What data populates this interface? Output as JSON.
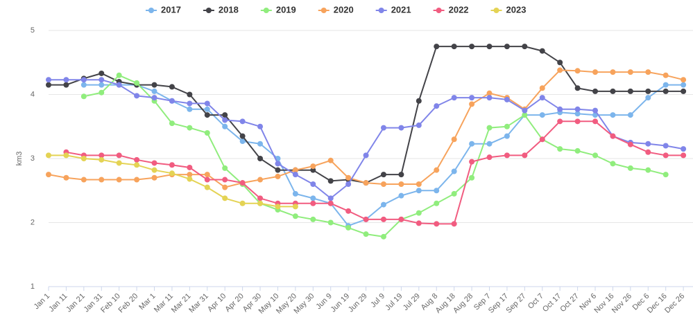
{
  "chart_data": {
    "type": "line",
    "y_label": "km3",
    "categories": [
      "Jan 1",
      "Jan 11",
      "Jan 21",
      "Jan 31",
      "Feb 10",
      "Feb 20",
      "Mar 1",
      "Mar 11",
      "Mar 21",
      "Mar 31",
      "Apr 10",
      "Apr 20",
      "Apr 30",
      "May 10",
      "May 20",
      "May 30",
      "Jun 9",
      "Jun 19",
      "Jun 29",
      "Jul 9",
      "Jul 19",
      "Jul 29",
      "Aug 8",
      "Aug 18",
      "Aug 28",
      "Sep 7",
      "Sep 17",
      "Sep 27",
      "Oct 7",
      "Oct 17",
      "Oct 27",
      "Nov 6",
      "Nov 16",
      "Nov 26",
      "Dec 6",
      "Dec 16",
      "Dec 26"
    ],
    "ylim": [
      1,
      5
    ],
    "yticks": [
      1,
      2,
      3,
      4,
      5
    ],
    "grid": true,
    "legend": "top",
    "series": [
      {
        "name": "2017",
        "color": "#7cb5ec",
        "values": [
          null,
          null,
          4.15,
          4.15,
          4.15,
          4.15,
          4.05,
          3.9,
          3.77,
          3.77,
          3.5,
          3.27,
          3.23,
          3.0,
          2.45,
          2.38,
          2.3,
          1.95,
          2.05,
          2.28,
          2.42,
          2.5,
          2.5,
          2.8,
          3.23,
          3.23,
          3.35,
          3.68,
          3.68,
          3.72,
          3.7,
          3.68,
          3.68,
          3.68,
          3.95,
          4.15,
          4.15
        ]
      },
      {
        "name": "2018",
        "color": "#434348",
        "values": [
          4.15,
          4.15,
          4.25,
          4.33,
          4.2,
          4.15,
          4.15,
          4.12,
          4.0,
          3.68,
          3.68,
          3.35,
          3.0,
          2.82,
          2.82,
          2.82,
          2.65,
          2.67,
          2.62,
          2.75,
          2.75,
          3.9,
          4.75,
          4.75,
          4.75,
          4.75,
          4.75,
          4.75,
          4.68,
          4.5,
          4.1,
          4.05,
          4.05,
          4.05,
          4.05,
          4.05,
          4.05
        ]
      },
      {
        "name": "2019",
        "color": "#90ed7d",
        "values": [
          null,
          null,
          3.97,
          4.03,
          4.3,
          4.18,
          3.9,
          3.55,
          3.48,
          3.4,
          2.85,
          2.6,
          2.3,
          2.2,
          2.1,
          2.05,
          2.0,
          1.92,
          1.82,
          1.78,
          2.05,
          2.15,
          2.3,
          2.45,
          2.7,
          3.48,
          3.5,
          3.68,
          3.3,
          3.15,
          3.12,
          3.05,
          2.92,
          2.85,
          2.82,
          2.75,
          null
        ]
      },
      {
        "name": "2020",
        "color": "#f7a35c",
        "values": [
          2.75,
          2.7,
          2.67,
          2.67,
          2.67,
          2.67,
          2.7,
          2.75,
          2.75,
          2.75,
          2.55,
          2.62,
          2.67,
          2.72,
          2.82,
          2.88,
          2.97,
          2.7,
          2.62,
          2.6,
          2.6,
          2.6,
          2.82,
          3.3,
          3.85,
          4.02,
          3.95,
          3.77,
          4.1,
          4.38,
          4.37,
          4.35,
          4.35,
          4.35,
          4.35,
          4.3,
          4.23
        ]
      },
      {
        "name": "2021",
        "color": "#8085e9",
        "values": [
          4.23,
          4.23,
          4.23,
          4.23,
          4.15,
          3.98,
          3.95,
          3.9,
          3.86,
          3.86,
          3.6,
          3.58,
          3.5,
          2.92,
          2.75,
          2.6,
          2.38,
          2.6,
          3.05,
          3.48,
          3.48,
          3.52,
          3.82,
          3.95,
          3.95,
          3.95,
          3.92,
          3.75,
          3.95,
          3.77,
          3.77,
          3.75,
          3.35,
          3.25,
          3.23,
          3.2,
          3.15
        ]
      },
      {
        "name": "2022",
        "color": "#f15c80",
        "values": [
          null,
          3.1,
          3.05,
          3.05,
          3.05,
          2.98,
          2.93,
          2.9,
          2.86,
          2.67,
          2.67,
          2.62,
          2.38,
          2.3,
          2.3,
          2.3,
          2.3,
          2.18,
          2.05,
          2.05,
          2.05,
          1.99,
          1.98,
          1.98,
          2.95,
          3.02,
          3.05,
          3.05,
          3.3,
          3.58,
          3.58,
          3.58,
          3.35,
          3.22,
          3.1,
          3.05,
          3.05
        ]
      },
      {
        "name": "2023",
        "color": "#e4d354",
        "values": [
          3.05,
          3.05,
          3.0,
          2.98,
          2.93,
          2.9,
          2.82,
          2.77,
          2.68,
          2.55,
          2.38,
          2.3,
          2.3,
          2.25,
          2.25,
          null,
          null,
          null,
          null,
          null,
          null,
          null,
          null,
          null,
          null,
          null,
          null,
          null,
          null,
          null,
          null,
          null,
          null,
          null,
          null,
          null,
          null
        ]
      }
    ]
  }
}
